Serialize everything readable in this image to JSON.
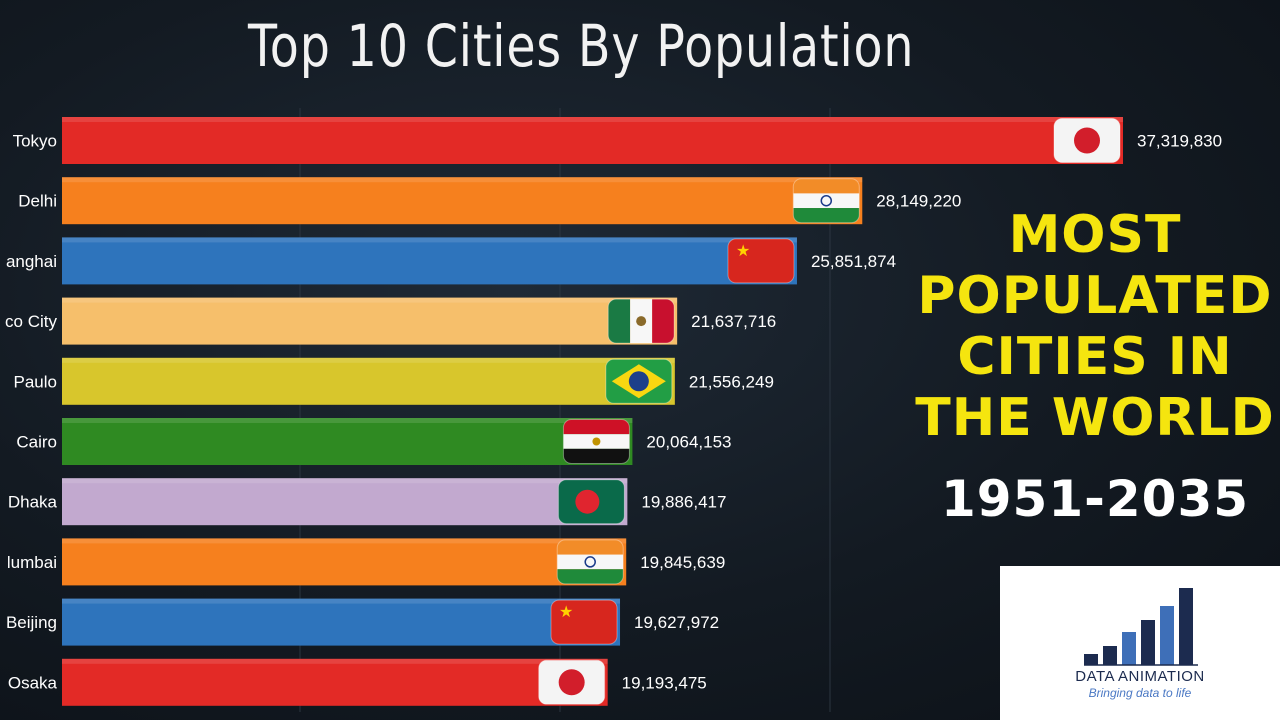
{
  "title": "Top 10 Cities By Population",
  "headline_lines": [
    "MOST",
    "POPULATED",
    "CITIES IN",
    "THE WORLD"
  ],
  "years": "1951-2035",
  "logo": {
    "name": "DATA ANIMATION",
    "tagline": "Bringing data to life"
  },
  "chart_data": {
    "type": "bar",
    "orientation": "horizontal",
    "title": "Top 10 Cities By Population",
    "categories": [
      "Tokyo",
      "Delhi",
      "Shanghai",
      "Mexico City",
      "São Paulo",
      "Cairo",
      "Dhaka",
      "Mumbai",
      "Beijing",
      "Osaka"
    ],
    "visible_labels": [
      "Tokyo",
      "Delhi",
      "anghai",
      "co City",
      "Paulo",
      "Cairo",
      "Dhaka",
      "lumbai",
      "Beijing",
      "Osaka"
    ],
    "values": [
      37319830,
      28149220,
      25851874,
      21637716,
      21556249,
      20064153,
      19886417,
      19845639,
      19627972,
      19193475
    ],
    "value_labels": [
      "37,319,830",
      "28,149,220",
      "25,851,874",
      "21,637,716",
      "21,556,249",
      "20,064,153",
      "19,886,417",
      "19,845,639",
      "19,627,972",
      "19,193,475"
    ],
    "flags": [
      "japan",
      "india",
      "china",
      "mexico",
      "brazil",
      "egypt",
      "bangladesh",
      "india",
      "china",
      "japan"
    ],
    "colors": [
      "#e32a26",
      "#f6801e",
      "#2e74bc",
      "#f6bf6b",
      "#d8c62c",
      "#2f8a22",
      "#c2a9cf",
      "#f6801e",
      "#2e74bc",
      "#e32a26"
    ],
    "grid": true,
    "legend": "none"
  }
}
